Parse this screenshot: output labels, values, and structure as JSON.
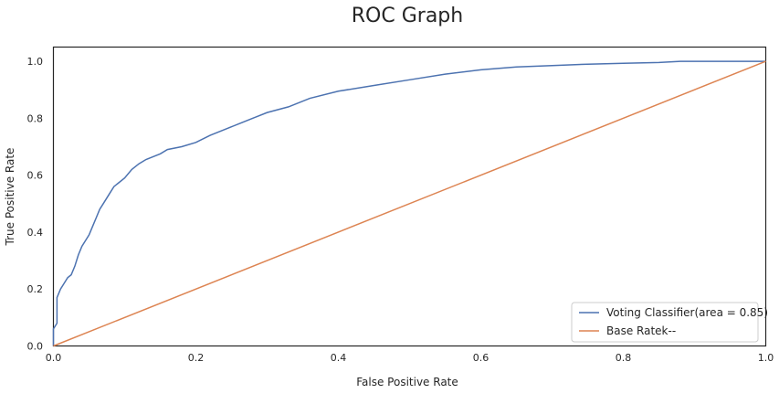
{
  "chart_data": {
    "type": "line",
    "title": "ROC Graph",
    "xlabel": "False Positive Rate",
    "ylabel": "True Positive Rate",
    "xlim": [
      0.0,
      1.0
    ],
    "ylim": [
      0.0,
      1.05
    ],
    "x_ticks": [
      "0.0",
      "0.2",
      "0.4",
      "0.6",
      "0.8",
      "1.0"
    ],
    "y_ticks": [
      "0.0",
      "0.2",
      "0.4",
      "0.6",
      "0.8",
      "1.0"
    ],
    "grid": false,
    "legend_position": "lower-right",
    "series": [
      {
        "name": "Voting Classifier(area = 0.85)",
        "color": "#4c72b0",
        "x": [
          0.0,
          0.0,
          0.005,
          0.005,
          0.01,
          0.015,
          0.02,
          0.025,
          0.03,
          0.035,
          0.04,
          0.045,
          0.05,
          0.055,
          0.06,
          0.065,
          0.07,
          0.075,
          0.08,
          0.085,
          0.09,
          0.1,
          0.11,
          0.12,
          0.13,
          0.14,
          0.15,
          0.16,
          0.18,
          0.2,
          0.22,
          0.24,
          0.26,
          0.28,
          0.3,
          0.33,
          0.36,
          0.4,
          0.45,
          0.5,
          0.55,
          0.6,
          0.65,
          0.7,
          0.75,
          0.8,
          0.85,
          0.88,
          0.9,
          0.95,
          1.0
        ],
        "y": [
          0.0,
          0.06,
          0.08,
          0.17,
          0.2,
          0.22,
          0.24,
          0.25,
          0.28,
          0.32,
          0.35,
          0.37,
          0.39,
          0.42,
          0.45,
          0.48,
          0.5,
          0.52,
          0.54,
          0.56,
          0.57,
          0.59,
          0.62,
          0.64,
          0.655,
          0.665,
          0.675,
          0.69,
          0.7,
          0.715,
          0.74,
          0.76,
          0.78,
          0.8,
          0.82,
          0.84,
          0.87,
          0.895,
          0.915,
          0.935,
          0.955,
          0.97,
          0.98,
          0.985,
          0.99,
          0.993,
          0.996,
          1.0,
          1.0,
          1.0,
          1.0
        ]
      },
      {
        "name": "Base Ratek--",
        "color": "#dd8452",
        "x": [
          0.0,
          1.0
        ],
        "y": [
          0.0,
          1.0
        ]
      }
    ]
  }
}
